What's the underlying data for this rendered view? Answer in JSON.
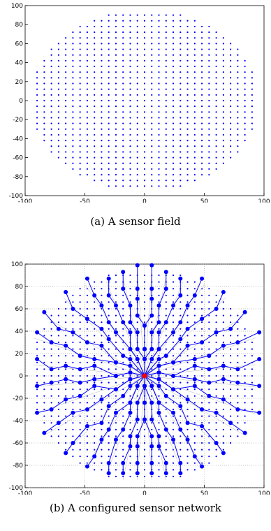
{
  "chart_data": [
    {
      "type": "scatter",
      "caption": "(a) A sensor field",
      "xlim": [
        -100,
        100
      ],
      "ylim": [
        -100,
        100
      ],
      "xticks": [
        -100,
        -50,
        0,
        50,
        100
      ],
      "yticks": [
        -100,
        -80,
        -60,
        -40,
        -20,
        0,
        20,
        40,
        60,
        80,
        100
      ],
      "grid": false,
      "marker_color": "#0000ff",
      "field": {
        "grid_spacing": 6,
        "radius": 95,
        "x_clip": 93
      },
      "series": [
        {
          "values_note": "",
          "values": []
        }
      ]
    },
    {
      "type": "network",
      "caption": "(b) A configured sensor network",
      "xlim": [
        -100,
        100
      ],
      "ylim": [
        -100,
        100
      ],
      "xticks": [
        -100,
        -50,
        0,
        50,
        100
      ],
      "yticks": [
        -100,
        -80,
        -60,
        -40,
        -20,
        0,
        20,
        40,
        60,
        80,
        100
      ],
      "grid": true,
      "marker_color": "#0000ff",
      "sink_color": "#ff0000",
      "sink": [
        0,
        0
      ],
      "field": {
        "grid_spacing": 6,
        "radius": 95,
        "x_clip": 93
      },
      "spokes": [
        [
          -6,
          93
        ],
        [
          6,
          93
        ],
        [
          -18,
          88
        ],
        [
          18,
          88
        ],
        [
          -32,
          84
        ],
        [
          32,
          84
        ],
        [
          -50,
          82
        ],
        [
          50,
          82
        ],
        [
          -68,
          70
        ],
        [
          68,
          70
        ],
        [
          -82,
          52
        ],
        [
          82,
          52
        ],
        [
          -93,
          34
        ],
        [
          93,
          34
        ],
        [
          -93,
          10
        ],
        [
          93,
          10
        ],
        [
          -93,
          -10
        ],
        [
          93,
          -10
        ],
        [
          -93,
          -34
        ],
        [
          93,
          -34
        ],
        [
          -82,
          -52
        ],
        [
          82,
          -52
        ],
        [
          -68,
          -70
        ],
        [
          68,
          -70
        ],
        [
          -50,
          -82
        ],
        [
          50,
          -82
        ],
        [
          -32,
          -88
        ],
        [
          32,
          -88
        ],
        [
          -18,
          -93
        ],
        [
          18,
          -93
        ],
        [
          -6,
          -93
        ],
        [
          6,
          -93
        ]
      ]
    }
  ]
}
